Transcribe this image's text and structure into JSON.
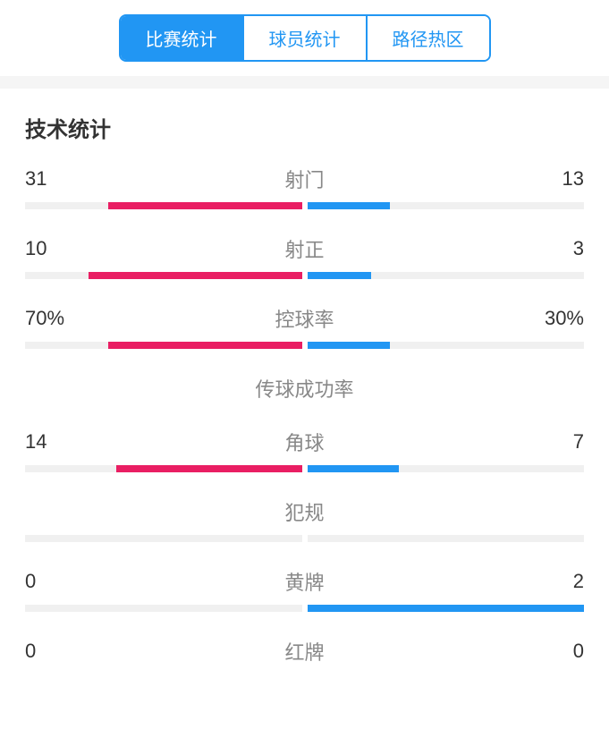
{
  "colors": {
    "primary": "#2196f3",
    "leftBar": "#e91e63",
    "rightBar": "#2196f3",
    "barTrack": "#f0f0f0",
    "textDark": "#333333",
    "textGray": "#888888"
  },
  "tabs": [
    {
      "label": "比赛统计",
      "active": true
    },
    {
      "label": "球员统计",
      "active": false
    },
    {
      "label": "路径热区",
      "active": false
    }
  ],
  "sectionTitle": "技术统计",
  "stats": [
    {
      "label": "射门",
      "leftValue": "31",
      "rightValue": "13",
      "leftPercent": 70,
      "rightPercent": 30
    },
    {
      "label": "射正",
      "leftValue": "10",
      "rightValue": "3",
      "leftPercent": 77,
      "rightPercent": 23
    },
    {
      "label": "控球率",
      "leftValue": "70%",
      "rightValue": "30%",
      "leftPercent": 70,
      "rightPercent": 30
    },
    {
      "label": "传球成功率",
      "leftValue": "",
      "rightValue": "",
      "leftPercent": 0,
      "rightPercent": 0,
      "noBars": true
    },
    {
      "label": "角球",
      "leftValue": "14",
      "rightValue": "7",
      "leftPercent": 67,
      "rightPercent": 33
    },
    {
      "label": "犯规",
      "leftValue": "",
      "rightValue": "",
      "leftPercent": 0,
      "rightPercent": 0
    },
    {
      "label": "黄牌",
      "leftValue": "0",
      "rightValue": "2",
      "leftPercent": 0,
      "rightPercent": 100
    },
    {
      "label": "红牌",
      "leftValue": "0",
      "rightValue": "0",
      "leftPercent": 0,
      "rightPercent": 0,
      "noBars": true
    }
  ]
}
